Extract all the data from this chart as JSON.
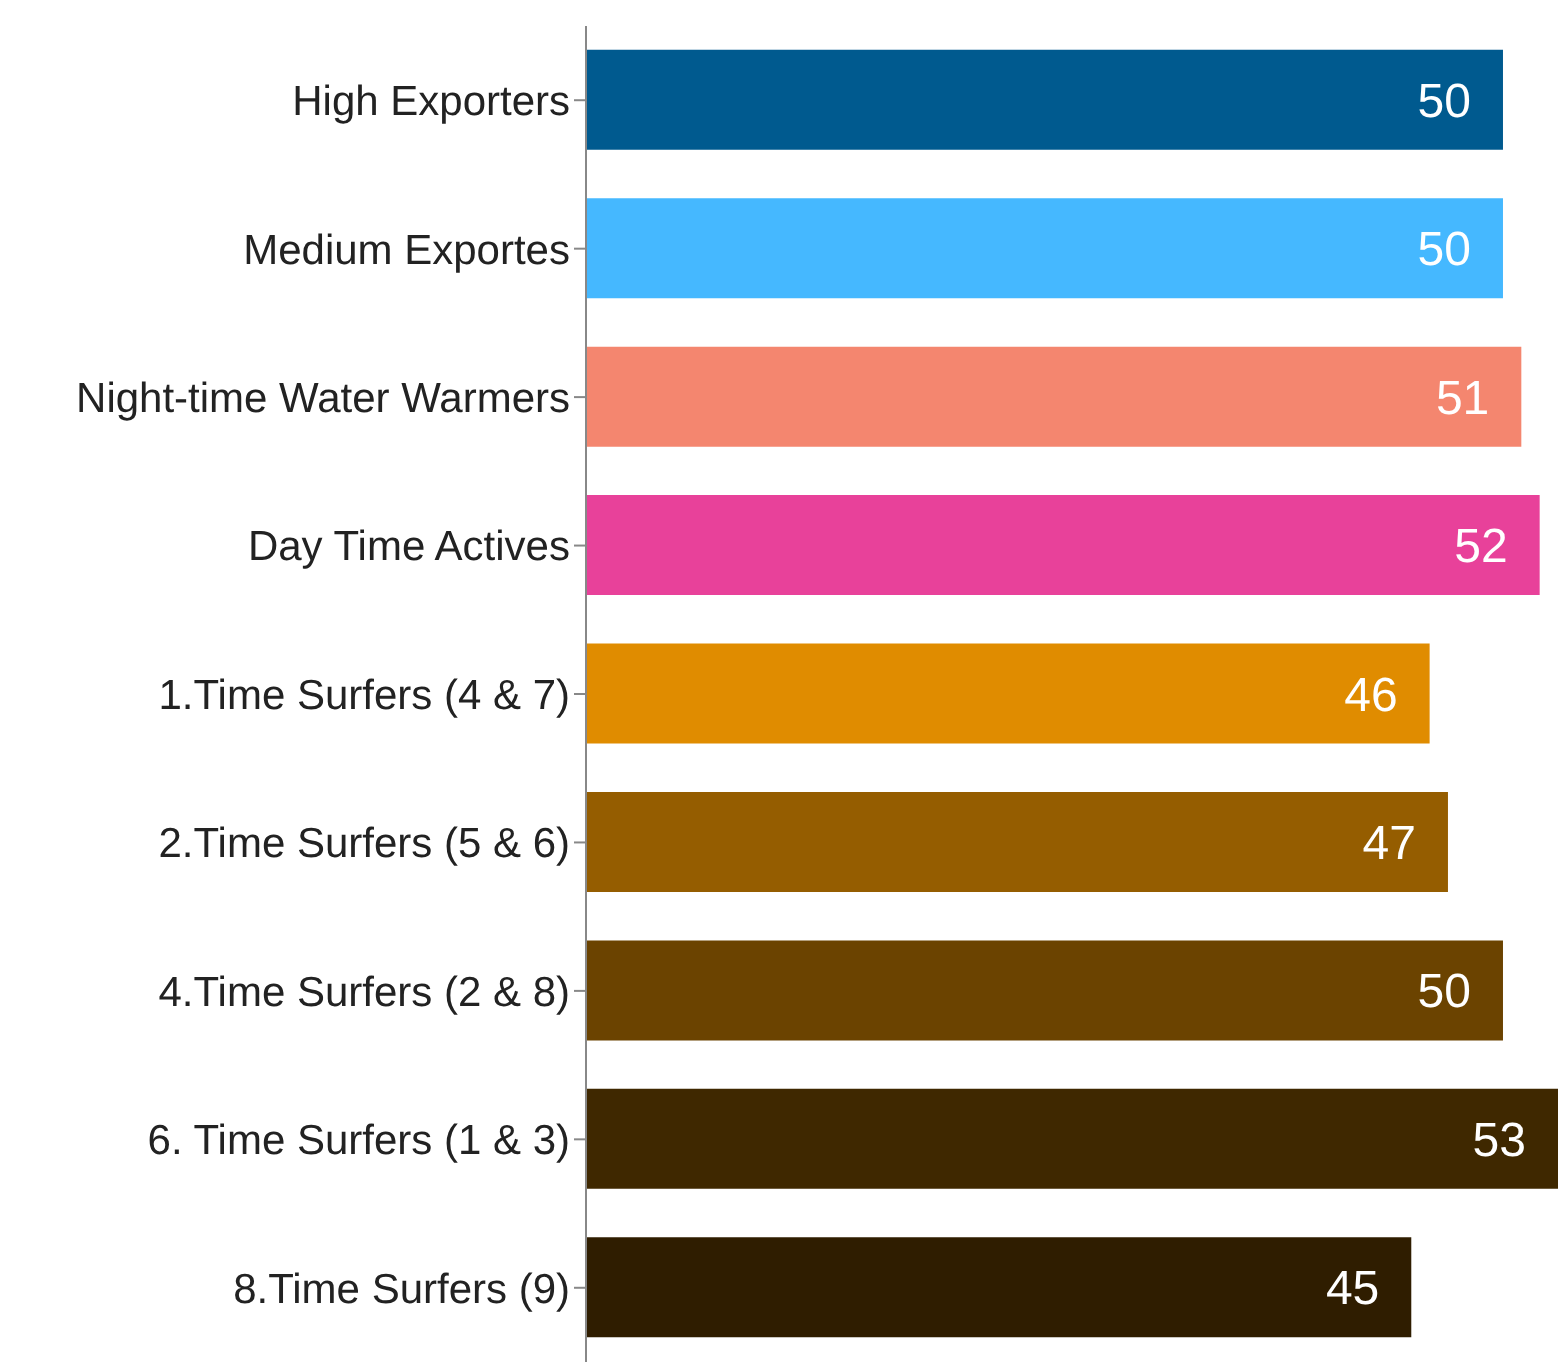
{
  "chart_data": {
    "type": "bar",
    "orientation": "horizontal",
    "categories": [
      "High Exporters",
      "Medium Exportes",
      "Night-time Water Warmers",
      "Day Time Actives",
      "1.Time Surfers (4 & 7)",
      "2.Time Surfers (5 & 6)",
      "4.Time Surfers (2 & 8)",
      "6. Time Surfers (1 & 3)",
      "8.Time Surfers (9)"
    ],
    "values": [
      50,
      50,
      51,
      52,
      46,
      47,
      50,
      53,
      45
    ],
    "colors": [
      "#005a8f",
      "#45b8ff",
      "#f4866f",
      "#e8419a",
      "#e08c00",
      "#955d00",
      "#6b4300",
      "#3f2800",
      "#2f1d00"
    ],
    "data_labels": true
  }
}
